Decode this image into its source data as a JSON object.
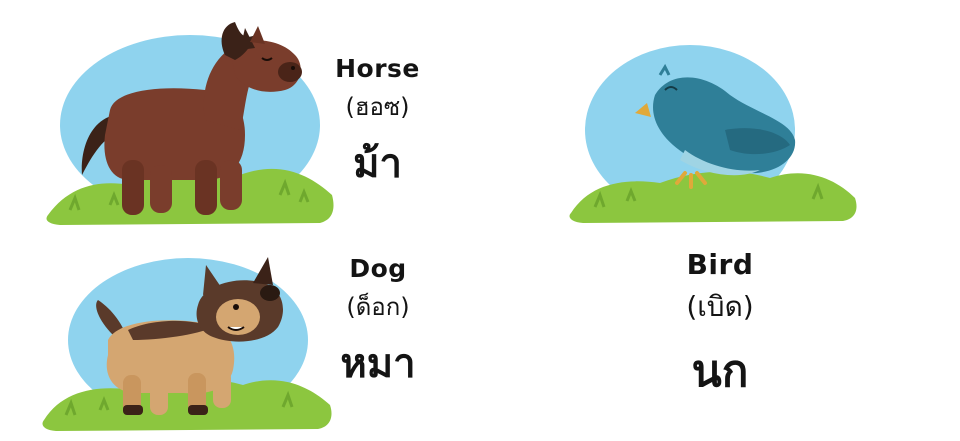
{
  "cards": [
    {
      "english": "Horse",
      "pronunciation": "(ฮอซ)",
      "thai": "ม้า",
      "image": "horse-illustration"
    },
    {
      "english": "Dog",
      "pronunciation": "(ด็อก)",
      "thai": "หมา",
      "image": "dog-illustration"
    },
    {
      "english": "Bird",
      "pronunciation": "(เบิด)",
      "thai": "นก",
      "image": "bird-illustration"
    }
  ],
  "colors": {
    "sky": "#8fd3ee",
    "grass": "#8cc63f",
    "grass_dark": "#6fa82e",
    "horse": "#7a3d2c",
    "dog_tan": "#d4a671",
    "dog_dark": "#5a3a2a",
    "bird": "#2f7f98",
    "text": "#141414"
  }
}
